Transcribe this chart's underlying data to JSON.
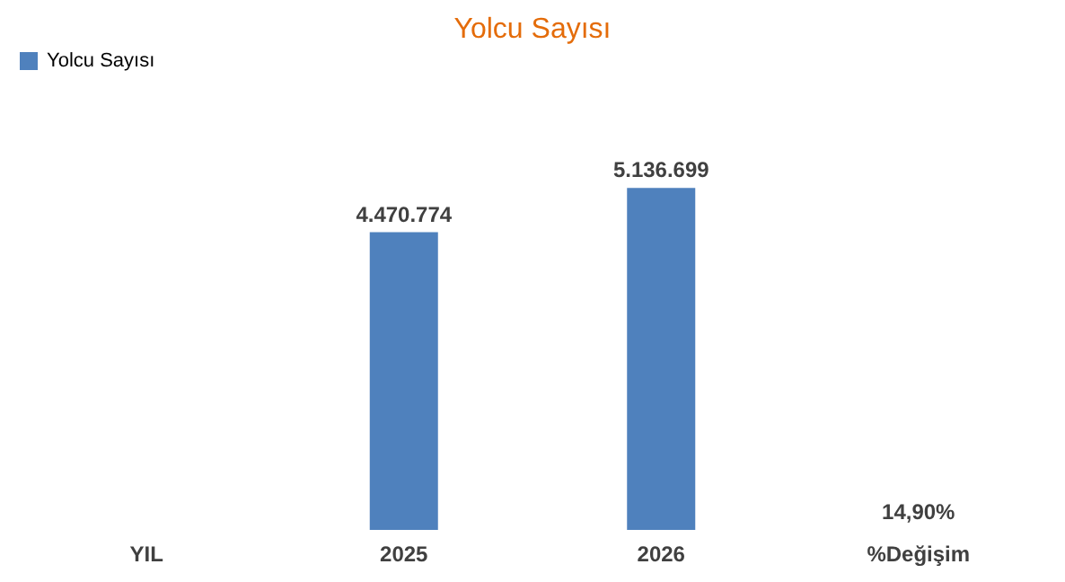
{
  "chart_data": {
    "type": "bar",
    "title": "Yolcu Sayısı",
    "categories": [
      "YIL",
      "2025",
      "2026",
      "%Değişim"
    ],
    "series": [
      {
        "name": "Yolcu Sayısı",
        "color": "#4f81bd",
        "values": [
          null,
          4470774,
          5136699,
          14.9
        ],
        "value_labels": [
          null,
          "4.470.774",
          "5.136.699",
          "14,90%"
        ]
      }
    ],
    "legend": "top",
    "grid": false
  }
}
